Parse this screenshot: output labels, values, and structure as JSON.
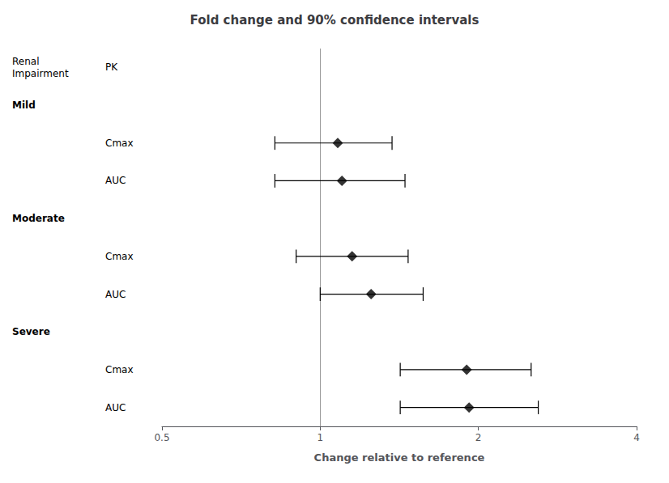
{
  "chart_data": {
    "type": "forest",
    "title": "Fold change and 90% confidence intervals",
    "xlabel": "Change relative to reference",
    "headers": [
      "Renal\nImpairment",
      "PK"
    ],
    "groups": [
      {
        "label": "Mild",
        "rows": [
          {
            "pk": "Cmax",
            "value": 1.08,
            "low": 0.82,
            "high": 1.37
          },
          {
            "pk": "AUC",
            "value": 1.1,
            "low": 0.82,
            "high": 1.45
          }
        ]
      },
      {
        "label": "Moderate",
        "rows": [
          {
            "pk": "Cmax",
            "value": 1.15,
            "low": 0.9,
            "high": 1.47
          },
          {
            "pk": "AUC",
            "value": 1.25,
            "low": 1.0,
            "high": 1.57
          }
        ]
      },
      {
        "label": "Severe",
        "rows": [
          {
            "pk": "Cmax",
            "value": 1.9,
            "low": 1.42,
            "high": 2.52
          },
          {
            "pk": "AUC",
            "value": 1.92,
            "low": 1.42,
            "high": 2.6
          }
        ]
      }
    ],
    "reference_line": {
      "value": 1.0,
      "color": "#999999"
    },
    "color": "black",
    "log": "x",
    "xlim": [
      0.5,
      4.0
    ],
    "xticks": [
      0.5,
      1,
      2,
      4
    ],
    "tick_labels": "x",
    "grid": false
  }
}
